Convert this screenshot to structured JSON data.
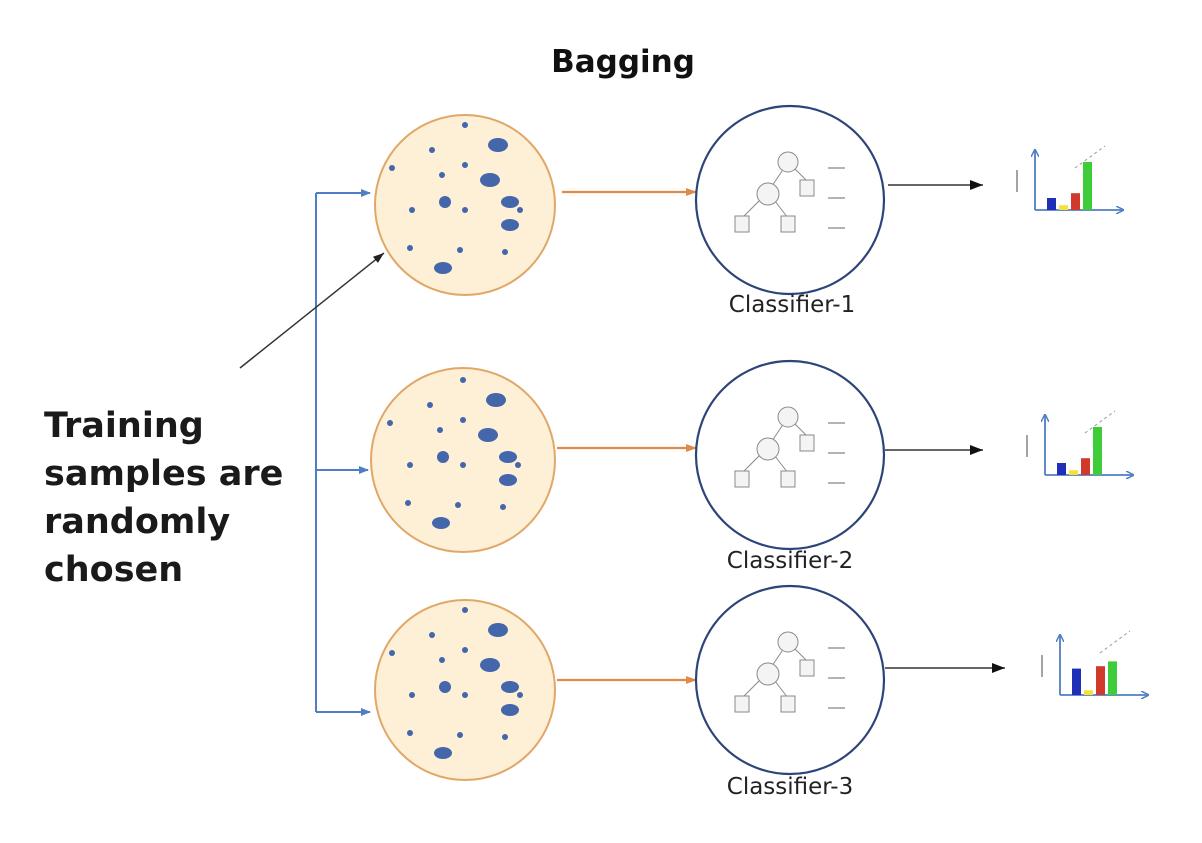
{
  "title": "Bagging",
  "side_text": {
    "line1": "Training",
    "line2": "samples are",
    "line3": "randomly",
    "line4": "chosen"
  },
  "classifiers": [
    {
      "label": "Classifier-1"
    },
    {
      "label": "Classifier-2"
    },
    {
      "label": "Classifier-3"
    }
  ],
  "colors": {
    "blue_line": "#4f7ec4",
    "orange_arrow": "#e08a4a",
    "sample_fill": "#fdf0d6",
    "sample_stroke": "#e0a769",
    "dot": "#4466aa",
    "classifier_stroke": "#2c4578",
    "bar_blue": "#1f2fb8",
    "bar_yellow": "#f2e33a",
    "bar_red": "#d13a2b",
    "bar_green": "#3fcc3a"
  },
  "mini_charts": [
    {
      "bars": [
        0.25,
        0.1,
        0.35,
        1.0
      ]
    },
    {
      "bars": [
        0.25,
        0.1,
        0.35,
        1.0
      ]
    },
    {
      "bars": [
        0.55,
        0.1,
        0.6,
        0.7
      ]
    }
  ]
}
